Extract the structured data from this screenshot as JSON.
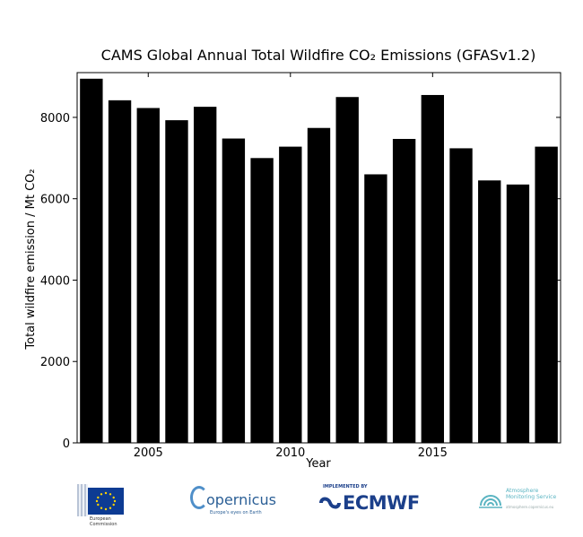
{
  "chart_data": {
    "type": "bar",
    "title": "CAMS Global Annual Total Wildfire CO₂ Emissions (GFASv1.2)",
    "xlabel": "Year",
    "ylabel": "Total wildfire emission / Mt CO₂",
    "categories": [
      2003,
      2004,
      2005,
      2006,
      2007,
      2008,
      2009,
      2010,
      2011,
      2012,
      2013,
      2014,
      2015,
      2016,
      2017,
      2018,
      2019
    ],
    "values": [
      8950,
      8420,
      8230,
      7930,
      8260,
      7480,
      7000,
      7280,
      7740,
      8500,
      6600,
      7470,
      8550,
      7240,
      6450,
      6350,
      7280
    ],
    "xticks": [
      2005,
      2010,
      2015
    ],
    "yticks": [
      0,
      2000,
      4000,
      6000,
      8000
    ],
    "xlim": [
      2002.5,
      2019.5
    ],
    "ylim": [
      0,
      9100
    ],
    "bar_color": "#000000",
    "grid": false
  },
  "footer": {
    "ec_text": "European\nCommission",
    "copernicus_word": "opernicus",
    "copernicus_tagline": "Europe's eyes on Earth",
    "ecmwf_implemented": "IMPLEMENTED BY",
    "ecmwf_word": "ECMWF",
    "ams_line1": "Atmosphere",
    "ams_line2": "Monitoring Service",
    "ams_url": "atmosphere.copernicus.eu"
  }
}
